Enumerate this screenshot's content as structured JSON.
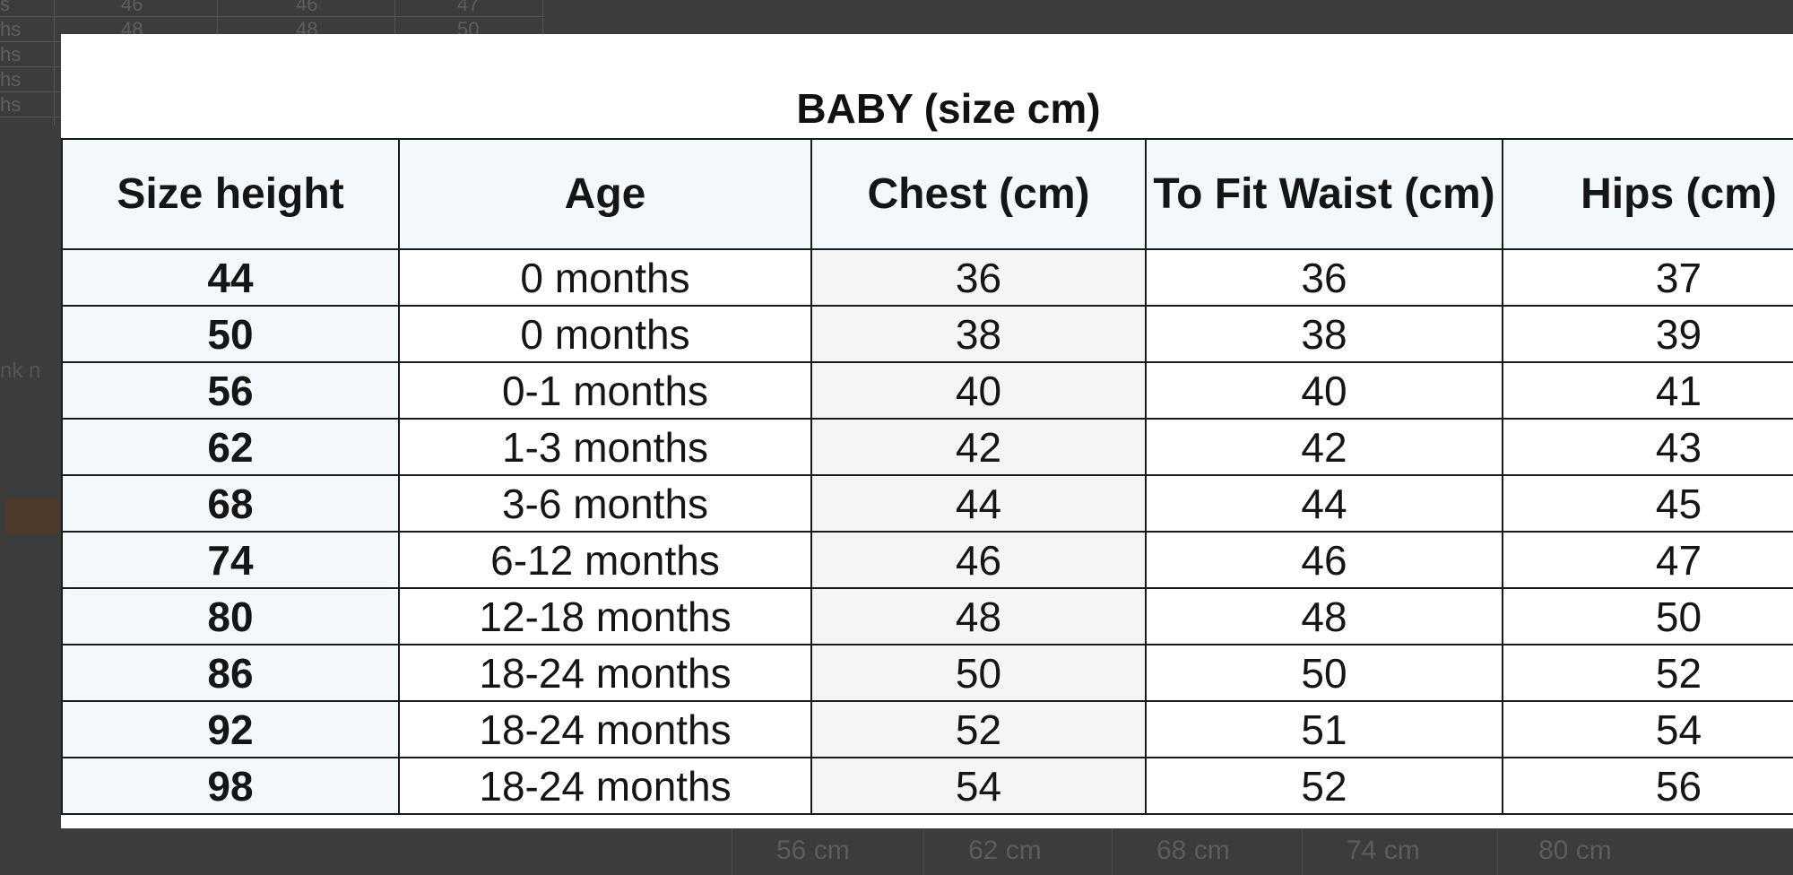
{
  "background": {
    "top_table_rows": [
      {
        "label": "s",
        "v1": "46",
        "v2": "46",
        "v3": "47"
      },
      {
        "label": "hs",
        "v1": "48",
        "v2": "48",
        "v3": "50"
      },
      {
        "label": "hs",
        "v1": "",
        "v2": "",
        "v3": ""
      },
      {
        "label": "hs",
        "v1": "",
        "v2": "",
        "v3": ""
      },
      {
        "label": "hs",
        "v1": "",
        "v2": "",
        "v3": ""
      }
    ],
    "bottom_row": [
      "56 cm",
      "62 cm",
      "68 cm",
      "74 cm",
      "80 cm"
    ],
    "left_text": "nk n"
  },
  "modal": {
    "title": "BABY (size cm)",
    "headers": {
      "size_height": "Size height",
      "age": "Age",
      "chest": "Chest (cm)",
      "waist": "To Fit Waist (cm)",
      "hips": "Hips (cm)"
    },
    "rows": [
      {
        "size": "44",
        "age": "0 months",
        "chest": "36",
        "waist": "36",
        "hips": "37"
      },
      {
        "size": "50",
        "age": "0 months",
        "chest": "38",
        "waist": "38",
        "hips": "39"
      },
      {
        "size": "56",
        "age": "0-1 months",
        "chest": "40",
        "waist": "40",
        "hips": "41"
      },
      {
        "size": "62",
        "age": "1-3 months",
        "chest": "42",
        "waist": "42",
        "hips": "43"
      },
      {
        "size": "68",
        "age": "3-6 months",
        "chest": "44",
        "waist": "44",
        "hips": "45"
      },
      {
        "size": "74",
        "age": "6-12 months",
        "chest": "46",
        "waist": "46",
        "hips": "47"
      },
      {
        "size": "80",
        "age": "12-18 months",
        "chest": "48",
        "waist": "48",
        "hips": "50"
      },
      {
        "size": "86",
        "age": "18-24 months",
        "chest": "50",
        "waist": "50",
        "hips": "52"
      },
      {
        "size": "92",
        "age": "18-24 months",
        "chest": "52",
        "waist": "51",
        "hips": "54"
      },
      {
        "size": "98",
        "age": "18-24 months",
        "chest": "54",
        "waist": "52",
        "hips": "56"
      }
    ]
  }
}
